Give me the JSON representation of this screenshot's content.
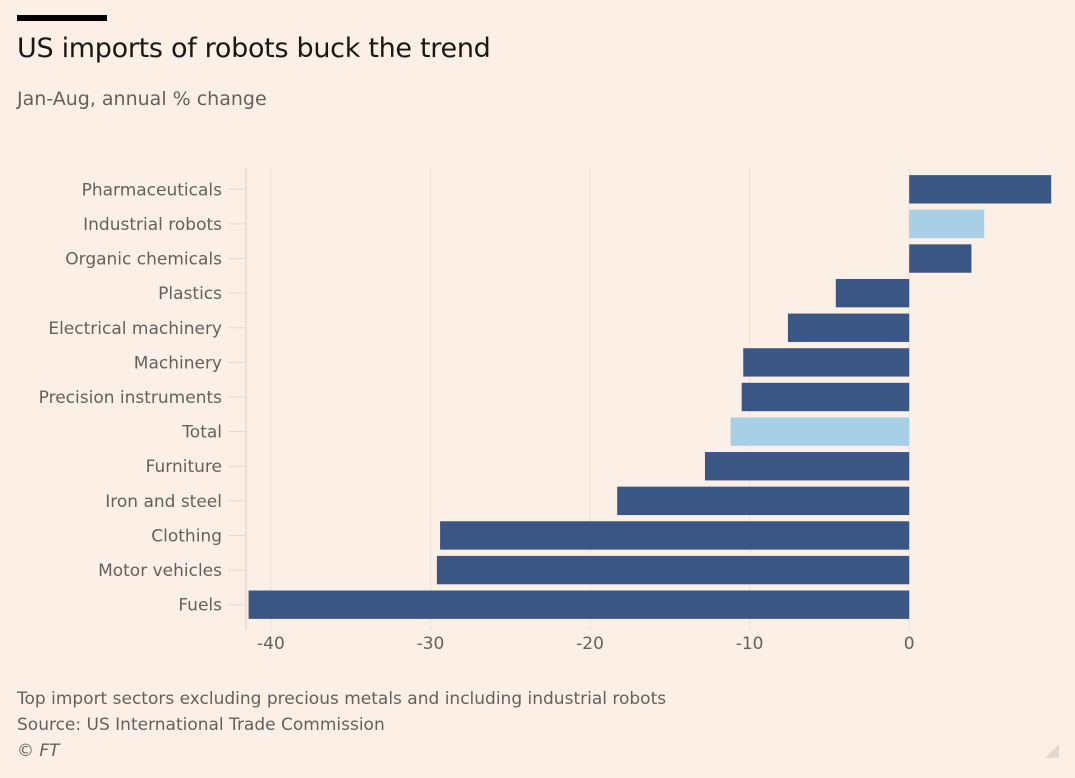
{
  "header": {
    "title": "US imports of robots buck the trend",
    "subtitle": "Jan-Aug, annual % change"
  },
  "footer": {
    "note": "Top import sectors excluding precious metals and including industrial robots",
    "source": "Source: US International Trade Commission",
    "copyright": "© FT"
  },
  "colors": {
    "background": "#fcf0e6",
    "bar_dark": "#3a5684",
    "bar_highlight": "#a7cfe6",
    "grid": "#ebe1d8",
    "text": "#66605c"
  },
  "chart_data": {
    "type": "bar",
    "orientation": "horizontal",
    "title": "US imports of robots buck the trend",
    "subtitle": "Jan-Aug, annual % change",
    "xlabel": "",
    "ylabel": "",
    "xlim": [
      -41.5,
      9.2
    ],
    "xticks": [
      -40,
      -30,
      -20,
      -10,
      0
    ],
    "xtick_labels": [
      "-40",
      "-30",
      "-20",
      "-10",
      "0"
    ],
    "grid": true,
    "categories": [
      "Pharmaceuticals",
      "Industrial robots",
      "Organic chemicals",
      "Plastics",
      "Electrical machinery",
      "Machinery",
      "Precision instruments",
      "Total",
      "Furniture",
      "Iron and steel",
      "Clothing",
      "Motor vehicles",
      "Fuels"
    ],
    "values": [
      8.9,
      4.7,
      3.9,
      -4.6,
      -7.6,
      -10.4,
      -10.5,
      -11.2,
      -12.8,
      -18.3,
      -29.4,
      -29.6,
      -41.4
    ],
    "highlighted": [
      "Industrial robots",
      "Total"
    ]
  }
}
